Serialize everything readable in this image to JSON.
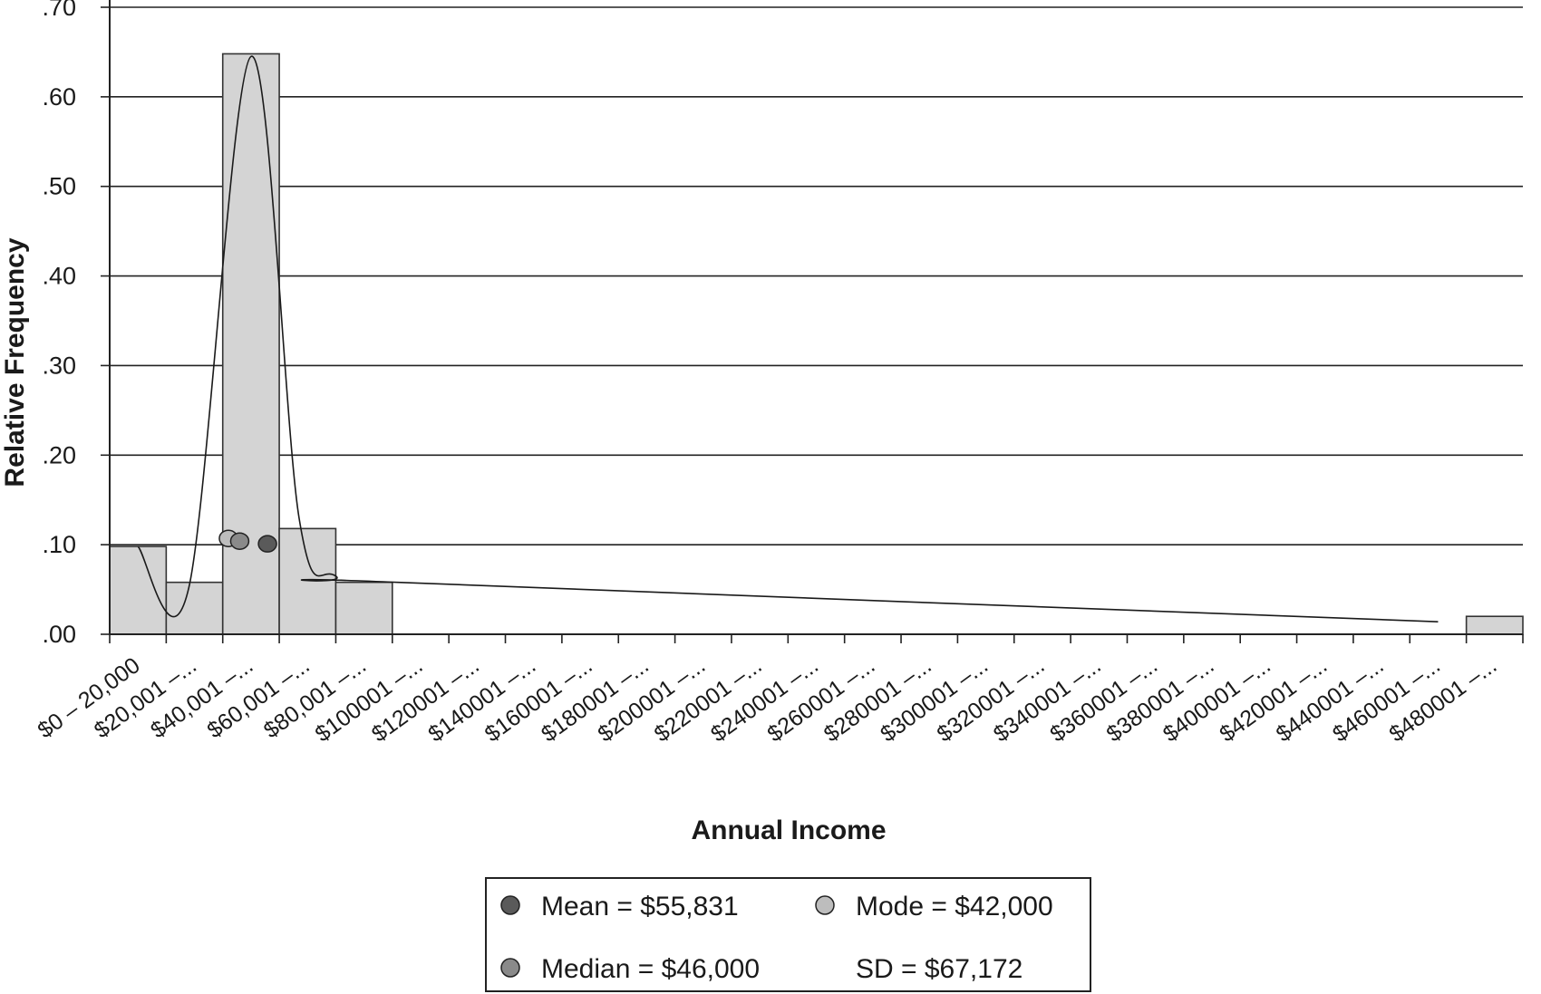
{
  "chart_data": {
    "type": "bar",
    "xlabel": "Annual Income",
    "ylabel": "Relative Frequency",
    "ylim": [
      0,
      0.7
    ],
    "yticks": [
      ".00",
      ".10",
      ".20",
      ".30",
      ".40",
      ".50",
      ".60",
      ".70"
    ],
    "grid": true,
    "categories": [
      "$0 – 20,000",
      "$20,001 –...",
      "$40,001 –...",
      "$60,001 –...",
      "$80,001 –...",
      "$100001 –...",
      "$120001 –...",
      "$140001 –...",
      "$160001 –...",
      "$180001 –...",
      "$200001 –...",
      "$220001 –...",
      "$240001 –...",
      "$260001 –...",
      "$280001 –...",
      "$300001 –...",
      "$320001 –...",
      "$340001 –...",
      "$360001 –...",
      "$380001 –...",
      "$400001 –...",
      "$420001 –...",
      "$440001 –...",
      "$460001 –...",
      "$480001 –..."
    ],
    "values": [
      0.098,
      0.058,
      0.648,
      0.118,
      0.058,
      0,
      0,
      0,
      0,
      0,
      0,
      0,
      0,
      0,
      0,
      0,
      0,
      0,
      0,
      0,
      0,
      0,
      0,
      0,
      0.02
    ],
    "curve_points": [
      [
        10000,
        0.098
      ],
      [
        28000,
        0.052
      ],
      [
        50000,
        0.645
      ],
      [
        67000,
        0.13
      ],
      [
        80000,
        0.065
      ],
      [
        102000,
        0.058
      ],
      [
        470000,
        0.014
      ]
    ],
    "markers": [
      {
        "name": "Mode",
        "x": 42000,
        "y": 0.107,
        "color": "#bdbdbd"
      },
      {
        "name": "Median",
        "x": 46000,
        "y": 0.104,
        "color": "#8a8a8a"
      },
      {
        "name": "Mean",
        "x": 55831,
        "y": 0.101,
        "color": "#5a5a5a"
      }
    ],
    "legend": {
      "position": "bottom",
      "items": [
        {
          "label": "Mean = $55,831",
          "color": "#5a5a5a"
        },
        {
          "label": "Mode = $42,000",
          "color": "#bdbdbd"
        },
        {
          "label": "Median = $46,000",
          "color": "#8a8a8a"
        },
        {
          "label": "SD = $67,172"
        }
      ]
    },
    "colors": {
      "bar_fill": "#d4d4d4",
      "bar_stroke": "#333333",
      "grid": "#222222"
    }
  }
}
